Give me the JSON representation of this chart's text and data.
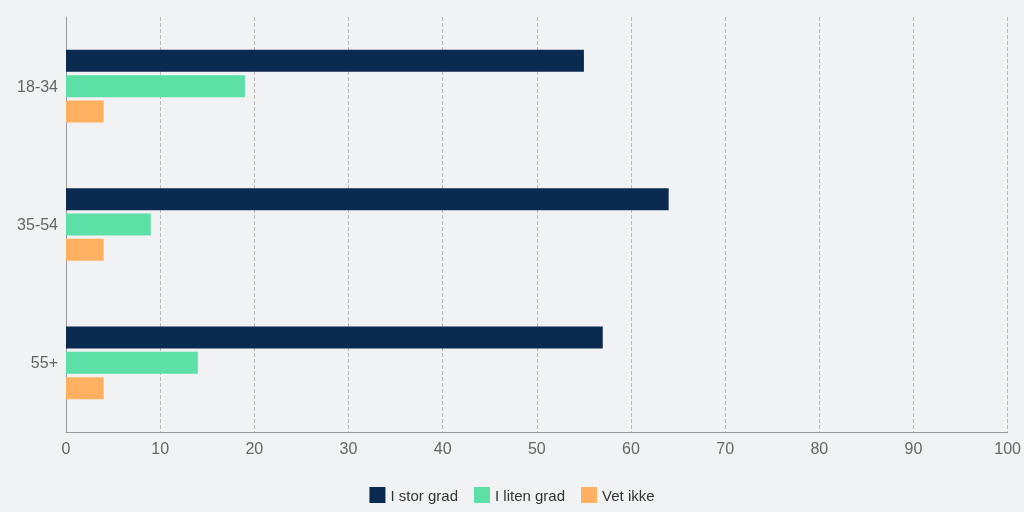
{
  "chart_data": {
    "type": "bar",
    "orientation": "horizontal",
    "categories": [
      "18-34",
      "35-54",
      "55+"
    ],
    "series": [
      {
        "name": "I stor grad",
        "color": "#0b2a50",
        "values": [
          55,
          64,
          57
        ]
      },
      {
        "name": "I liten grad",
        "color": "#5ce0a6",
        "values": [
          19,
          9,
          14
        ]
      },
      {
        "name": "Vet ikke",
        "color": "#ffb061",
        "values": [
          4,
          4,
          4
        ]
      }
    ],
    "xlim": [
      0,
      100
    ],
    "xticks": [
      0,
      10,
      20,
      30,
      40,
      50,
      60,
      70,
      80,
      90,
      100
    ],
    "grid": "x",
    "legend": "bottom"
  }
}
